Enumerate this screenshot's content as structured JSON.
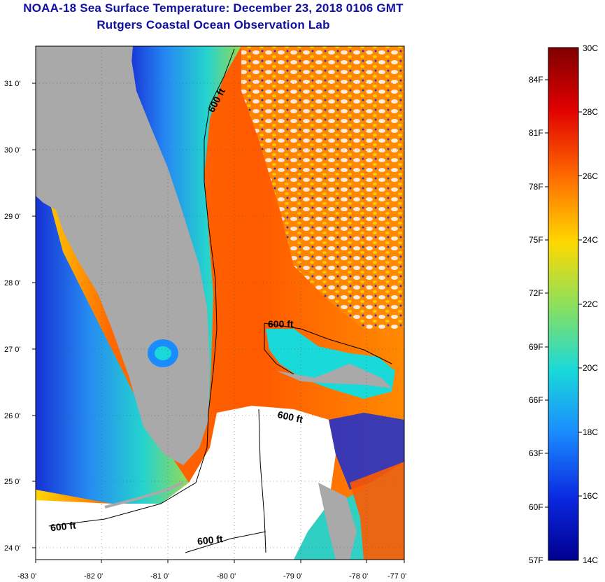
{
  "header": {
    "title": "NOAA-18 Sea Surface Temperature:  December 23, 2018 0106 GMT",
    "subtitle": "Rutgers Coastal Ocean Observation Lab"
  },
  "map": {
    "lon_range": [
      -83,
      -77
    ],
    "lat_range": [
      23.8,
      31.4
    ],
    "lon_ticks": [
      "-83 0'",
      "-82 0'",
      "-81 0'",
      "-80 0'",
      "-79 0'",
      "-78 0'",
      "-77 0'"
    ],
    "lat_ticks": [
      "24 0'",
      "25 0'",
      "26 0'",
      "27 0'",
      "28 0'",
      "29 0'",
      "30 0'",
      "31 0'"
    ],
    "contour_labels": [
      "600 ft",
      "600 ft",
      "600 ft",
      "600 ft",
      "600 ft"
    ],
    "colors": {
      "land": "#a9a9a9",
      "cloud": "#ffffff",
      "contour": "#000000"
    }
  },
  "colorbar": {
    "celsius_labels": [
      "30C",
      "28C",
      "26C",
      "24C",
      "22C",
      "20C",
      "18C",
      "16C",
      "14C"
    ],
    "fahrenheit_labels": [
      "84F",
      "81F",
      "78F",
      "75F",
      "72F",
      "69F",
      "66F",
      "63F",
      "60F",
      "57F"
    ],
    "range_c": [
      14,
      30
    ],
    "colors": [
      "#7f0000",
      "#e00000",
      "#ff6a00",
      "#ffd800",
      "#8ee05a",
      "#19d9d9",
      "#1a8cff",
      "#0a28e0",
      "#00008f"
    ]
  }
}
